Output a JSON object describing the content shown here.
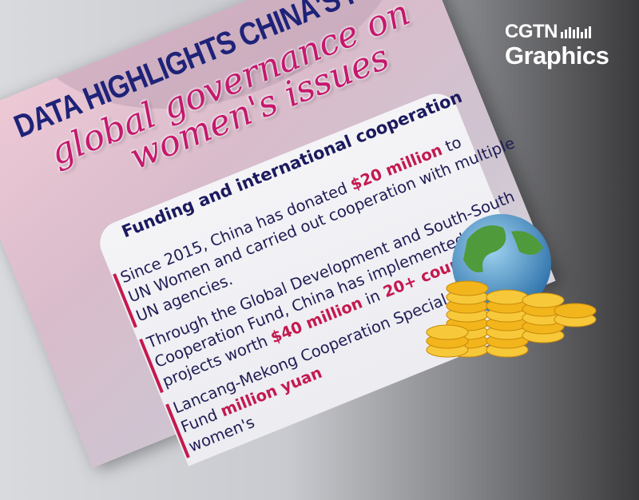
{
  "logo": {
    "line1": "CGTN",
    "line2": "Graphics"
  },
  "poster": {
    "title": "DATA HIGHLIGHTS CHINA'S ROLE",
    "subtitle_line1": "global governance on",
    "subtitle_line2": "women's issues",
    "section_heading": "Funding and international cooperation",
    "paragraphs": [
      {
        "lines": [
          {
            "parts": [
              "Since 2015, China has donated ",
              "$20 million",
              " to"
            ]
          },
          {
            "parts": [
              "UN Women and carried out cooperation with multiple"
            ]
          },
          {
            "parts": [
              "UN agencies."
            ]
          }
        ]
      },
      {
        "lines": [
          {
            "parts": [
              "Through the Global Development and South-South"
            ]
          },
          {
            "parts": [
              "Cooperation Fund, China has implemented"
            ]
          },
          {
            "parts": [
              "projects worth ",
              "$40 million",
              " in ",
              "20+ countries",
              "."
            ]
          }
        ]
      },
      {
        "lines": [
          {
            "parts": [
              "Lancang-Mekong Cooperation Special"
            ]
          },
          {
            "parts": [
              "Fund ",
              "million yuan"
            ]
          },
          {
            "parts": [
              "women's"
            ]
          }
        ]
      }
    ]
  },
  "colors": {
    "accent": "#c4194f",
    "navy": "#1e2378",
    "script_pink": "#c4196e"
  },
  "icons": [
    "globe-icon",
    "coin-stack-icon",
    "cgtn-bars-icon"
  ]
}
